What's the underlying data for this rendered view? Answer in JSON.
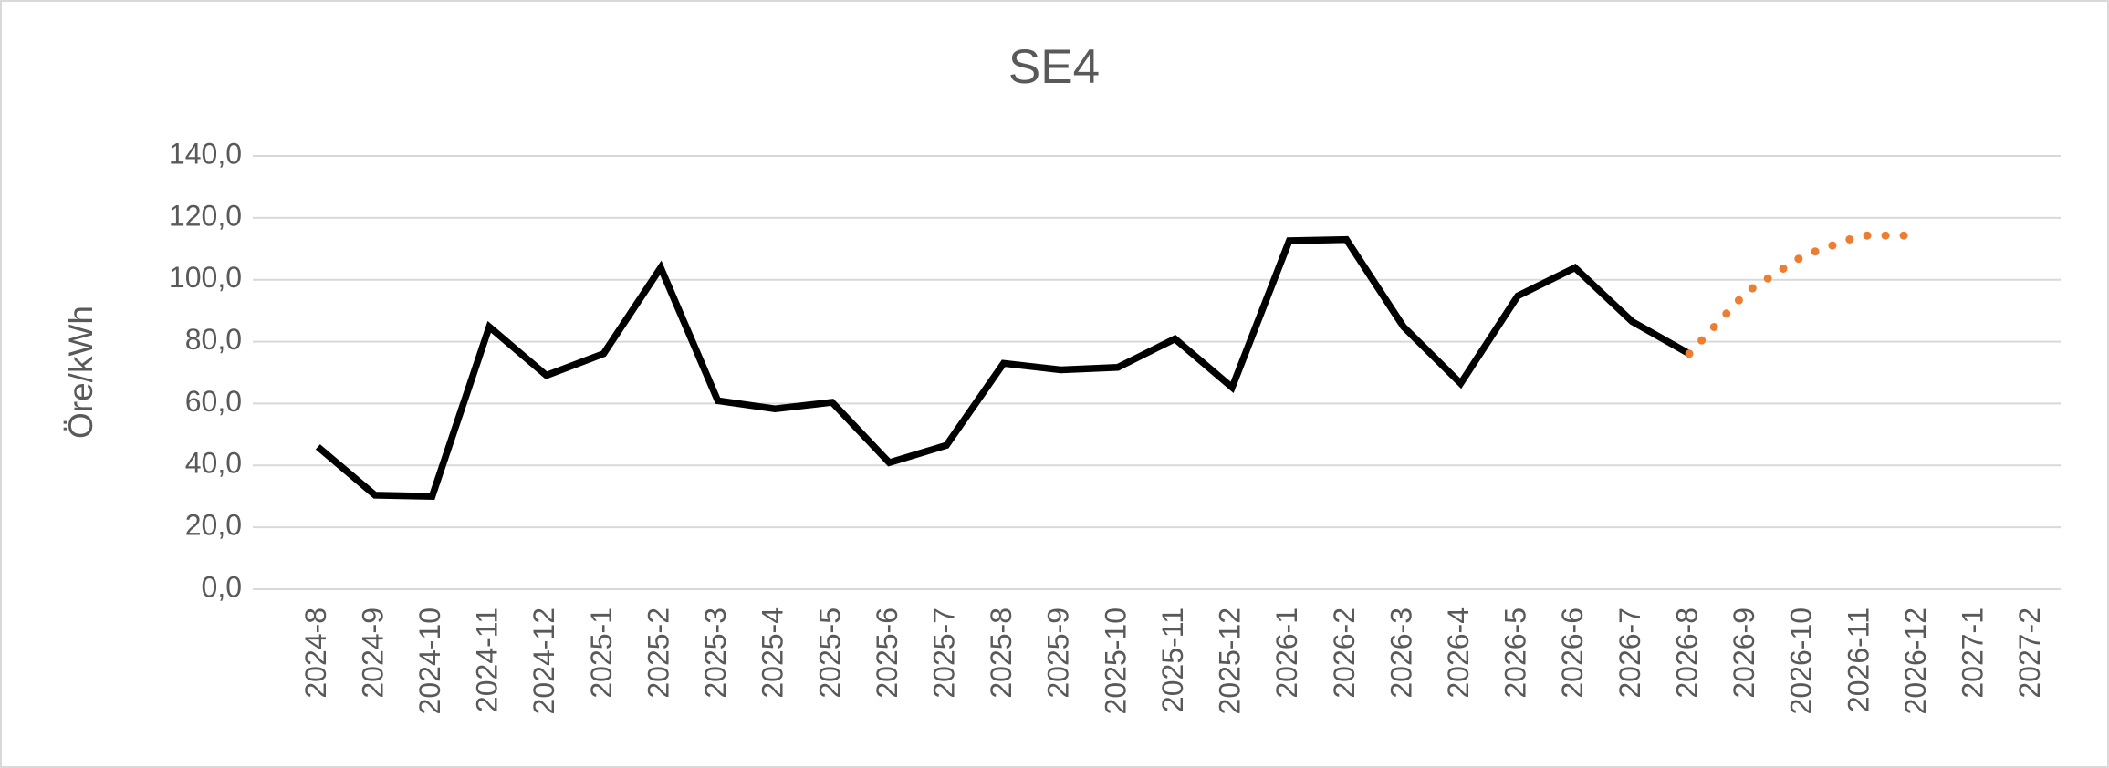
{
  "chart_data": {
    "type": "line",
    "title": "SE4",
    "y_label": "Öre/kWh",
    "categories": [
      "2024-8",
      "2024-9",
      "2024-10",
      "2024-11",
      "2024-12",
      "2025-1",
      "2025-2",
      "2025-3",
      "2025-4",
      "2025-5",
      "2025-6",
      "2025-7",
      "2025-8",
      "2025-9",
      "2025-10",
      "2025-11",
      "2025-12",
      "2026-1",
      "2026-2",
      "2026-3",
      "2026-4",
      "2026-5",
      "2026-6",
      "2026-7",
      "2026-8",
      "2026-9",
      "2026-10",
      "2026-11",
      "2026-12",
      "2027-1",
      "2027-2"
    ],
    "series": [
      {
        "color": "#000000",
        "style": "solid",
        "values": [
          46,
          30.4,
          30,
          84.8,
          69.1,
          76.1,
          103.9,
          60.9,
          58.3,
          60.4,
          40.9,
          46.5,
          73,
          70.9,
          71.7,
          80.9,
          65.2,
          112.6,
          113,
          84.8,
          66.5,
          94.8,
          103.9,
          86.5,
          76.1,
          null,
          null,
          null,
          null,
          null,
          null
        ]
      },
      {
        "color": "#ed7d31",
        "style": "dotted",
        "values": [
          null,
          null,
          null,
          null,
          null,
          null,
          null,
          null,
          null,
          null,
          null,
          null,
          null,
          null,
          null,
          null,
          null,
          null,
          null,
          null,
          null,
          null,
          null,
          null,
          76.1,
          96,
          107.8,
          114.3,
          114.3,
          null,
          null
        ]
      }
    ],
    "ylim": [
      0,
      140
    ],
    "yticks": [
      {
        "value": 0,
        "label": "0,0"
      },
      {
        "value": 20,
        "label": "20,0"
      },
      {
        "value": 40,
        "label": "40,0"
      },
      {
        "value": 60,
        "label": "60,0"
      },
      {
        "value": 80,
        "label": "80,0"
      },
      {
        "value": 100,
        "label": "100,0"
      },
      {
        "value": 120,
        "label": "120,0"
      },
      {
        "value": 140,
        "label": "140,0"
      }
    ],
    "grid": true
  }
}
